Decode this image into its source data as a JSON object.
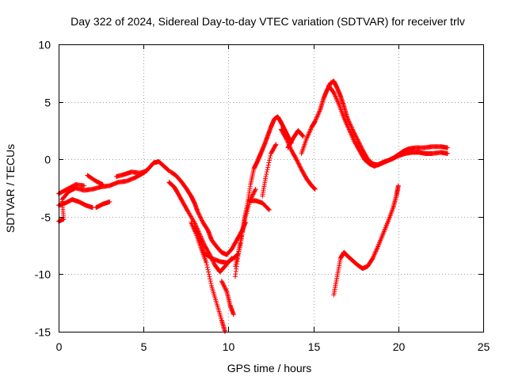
{
  "chart_data": {
    "type": "scatter",
    "title": "Day 322 of 2024, Sidereal Day-to-day VTEC variation (SDTVAR) for receiver trlv",
    "xlabel": "GPS time / hours",
    "ylabel": "SDTVAR / TECUs",
    "xlim": [
      0,
      25
    ],
    "ylim": [
      -15,
      10
    ],
    "xticks": [
      0,
      5,
      10,
      15,
      20,
      25
    ],
    "yticks": [
      -15,
      -10,
      -5,
      0,
      5,
      10
    ],
    "xtick_labels": [
      "0",
      "5",
      "10",
      "15",
      "20",
      "25"
    ],
    "ytick_labels": [
      "-15",
      "-10",
      "-5",
      "0",
      "5",
      "10"
    ],
    "grid": true,
    "marker": "+",
    "series": [
      {
        "name": "trlv",
        "color": "#ff0000",
        "segments": [
          [
            [
              0,
              -5.4
            ],
            [
              0.3,
              -5.2
            ],
            [
              0.2,
              -3.5
            ],
            [
              0.6,
              -2.8
            ],
            [
              1,
              -2.5
            ],
            [
              1.5,
              -2.7
            ],
            [
              2,
              -2.6
            ],
            [
              2.5,
              -2.4
            ],
            [
              3,
              -2.3
            ],
            [
              3.5,
              -2.0
            ],
            [
              4,
              -1.9
            ],
            [
              4.5,
              -1.6
            ],
            [
              5,
              -1.2
            ],
            [
              5.3,
              -0.8
            ],
            [
              5.6,
              -0.3
            ],
            [
              5.9,
              -0.2
            ],
            [
              6.2,
              -0.6
            ],
            [
              6.5,
              -1.0
            ]
          ],
          [
            [
              0,
              -4.0
            ],
            [
              0.4,
              -3.8
            ],
            [
              0.8,
              -3.5
            ],
            [
              1.2,
              -3.7
            ],
            [
              1.6,
              -4.0
            ],
            [
              2,
              -4.2
            ]
          ],
          [
            [
              0,
              -3.0
            ],
            [
              0.5,
              -2.6
            ],
            [
              1,
              -2.2
            ],
            [
              1.5,
              -2.3
            ]
          ],
          [
            [
              1.7,
              -1.4
            ],
            [
              2.2,
              -1.9
            ],
            [
              2.6,
              -2.2
            ]
          ],
          [
            [
              2.2,
              -4.2
            ],
            [
              2.6,
              -3.9
            ],
            [
              3.0,
              -3.7
            ]
          ],
          [
            [
              3.4,
              -1.5
            ],
            [
              3.9,
              -1.3
            ],
            [
              4.3,
              -1.1
            ],
            [
              4.8,
              -1.2
            ],
            [
              5.2,
              -1.0
            ]
          ],
          [
            [
              6.6,
              -1.1
            ],
            [
              6.9,
              -1.4
            ],
            [
              7.2,
              -1.9
            ],
            [
              7.5,
              -2.5
            ],
            [
              7.8,
              -3.2
            ],
            [
              8.0,
              -3.8
            ],
            [
              8.2,
              -4.6
            ],
            [
              8.5,
              -5.5
            ],
            [
              8.8,
              -6.2
            ],
            [
              9.0,
              -7.0
            ],
            [
              9.3,
              -7.6
            ],
            [
              9.6,
              -8.1
            ],
            [
              9.9,
              -8.3
            ],
            [
              10.2,
              -7.8
            ],
            [
              10.5,
              -7.0
            ],
            [
              10.8,
              -6.2
            ],
            [
              11.0,
              -5.5
            ]
          ],
          [
            [
              6.5,
              -2.0
            ],
            [
              6.8,
              -2.4
            ],
            [
              7.0,
              -2.9
            ],
            [
              7.3,
              -3.7
            ],
            [
              7.6,
              -4.5
            ],
            [
              8.0,
              -5.5
            ],
            [
              8.3,
              -6.5
            ],
            [
              8.6,
              -7.5
            ],
            [
              8.9,
              -8.3
            ],
            [
              9.2,
              -9.2
            ],
            [
              9.5,
              -9.8
            ],
            [
              9.8,
              -9.3
            ],
            [
              10.2,
              -8.6
            ]
          ],
          [
            [
              7.8,
              -5.5
            ],
            [
              8.1,
              -6.5
            ],
            [
              8.4,
              -7.8
            ],
            [
              8.7,
              -9.0
            ],
            [
              9.0,
              -11.0
            ],
            [
              9.3,
              -12.5
            ],
            [
              9.6,
              -14.0
            ],
            [
              9.8,
              -15.0
            ]
          ],
          [
            [
              8.0,
              -6.0
            ],
            [
              8.3,
              -6.8
            ],
            [
              8.6,
              -8.2
            ],
            [
              9.0,
              -8.6
            ],
            [
              9.5,
              -8.9
            ],
            [
              9.9,
              -9.0
            ],
            [
              10.3,
              -8.6
            ],
            [
              10.6,
              -8.2
            ]
          ],
          [
            [
              9.6,
              -10.6
            ],
            [
              9.9,
              -11.5
            ],
            [
              10.1,
              -12.7
            ],
            [
              10.3,
              -13.5
            ]
          ],
          [
            [
              10.4,
              -9.3
            ],
            [
              10.7,
              -7.5
            ],
            [
              10.9,
              -5.5
            ],
            [
              11.1,
              -4.0
            ],
            [
              11.3,
              -2.2
            ],
            [
              11.5,
              -0.8
            ],
            [
              11.7,
              -0.2
            ],
            [
              11.9,
              0.5
            ],
            [
              12.1,
              1.2
            ],
            [
              12.3,
              2.0
            ],
            [
              12.5,
              2.8
            ],
            [
              12.7,
              3.5
            ],
            [
              12.9,
              3.7
            ],
            [
              13.1,
              3.2
            ],
            [
              13.3,
              2.6
            ],
            [
              13.5,
              2.0
            ],
            [
              13.7,
              1.4
            ]
          ],
          [
            [
              10.4,
              -10.2
            ],
            [
              10.6,
              -8.0
            ],
            [
              10.8,
              -6.5
            ],
            [
              11.0,
              -5.0
            ],
            [
              11.3,
              -3.5
            ],
            [
              11.6,
              -2.6
            ]
          ],
          [
            [
              11.2,
              -3.6
            ],
            [
              11.6,
              -3.6
            ],
            [
              12.0,
              -3.8
            ],
            [
              12.4,
              -4.4
            ]
          ],
          [
            [
              12.0,
              -3.2
            ],
            [
              12.2,
              -1.5
            ],
            [
              12.5,
              0.5
            ],
            [
              12.8,
              1.3
            ]
          ],
          [
            [
              13.1,
              2.6
            ],
            [
              13.4,
              1.8
            ],
            [
              13.7,
              0.8
            ],
            [
              14.0,
              0.0
            ],
            [
              14.3,
              -0.9
            ],
            [
              14.6,
              -1.7
            ],
            [
              14.9,
              -2.3
            ],
            [
              15.1,
              -2.6
            ]
          ],
          [
            [
              13.5,
              1.0
            ],
            [
              13.8,
              1.8
            ],
            [
              14.1,
              2.5
            ],
            [
              14.4,
              2.0
            ]
          ],
          [
            [
              14.3,
              0.5
            ],
            [
              14.6,
              1.8
            ],
            [
              14.9,
              2.8
            ],
            [
              15.1,
              3.3
            ],
            [
              15.4,
              4.3
            ],
            [
              15.6,
              5.3
            ],
            [
              15.8,
              6.0
            ],
            [
              16.0,
              6.6
            ],
            [
              16.2,
              6.8
            ],
            [
              16.4,
              6.2
            ],
            [
              16.6,
              5.5
            ],
            [
              16.8,
              4.6
            ],
            [
              17.0,
              3.6
            ],
            [
              17.3,
              2.6
            ],
            [
              17.6,
              1.7
            ],
            [
              17.9,
              0.8
            ],
            [
              18.2,
              0.0
            ],
            [
              18.5,
              -0.4
            ],
            [
              18.8,
              -0.5
            ],
            [
              19.1,
              -0.3
            ],
            [
              19.4,
              -0.1
            ],
            [
              19.7,
              0.1
            ],
            [
              20.0,
              0.4
            ],
            [
              20.3,
              0.7
            ],
            [
              20.6,
              0.9
            ],
            [
              21.0,
              1.0
            ],
            [
              21.5,
              1.0
            ],
            [
              22.0,
              1.1
            ],
            [
              22.5,
              1.1
            ],
            [
              22.9,
              1.0
            ]
          ],
          [
            [
              15.9,
              6.4
            ],
            [
              16.2,
              5.8
            ],
            [
              16.5,
              4.8
            ],
            [
              16.8,
              3.6
            ],
            [
              17.1,
              2.6
            ],
            [
              17.4,
              1.6
            ],
            [
              17.7,
              0.8
            ],
            [
              18.0,
              0.0
            ],
            [
              18.3,
              -0.4
            ],
            [
              18.6,
              -0.6
            ],
            [
              18.9,
              -0.4
            ],
            [
              19.2,
              -0.2
            ],
            [
              19.6,
              0.0
            ],
            [
              20.0,
              0.3
            ],
            [
              20.4,
              0.5
            ],
            [
              20.8,
              0.6
            ],
            [
              21.2,
              0.6
            ],
            [
              21.6,
              0.5
            ],
            [
              22.0,
              0.5
            ],
            [
              22.5,
              0.6
            ],
            [
              22.9,
              0.5
            ]
          ],
          [
            [
              16.2,
              -11.8
            ],
            [
              16.4,
              -10.2
            ],
            [
              16.6,
              -8.6
            ],
            [
              16.8,
              -8.1
            ],
            [
              17.0,
              -8.4
            ],
            [
              17.3,
              -8.8
            ],
            [
              17.6,
              -9.2
            ],
            [
              17.9,
              -9.5
            ],
            [
              18.2,
              -9.3
            ],
            [
              18.5,
              -8.6
            ],
            [
              18.8,
              -7.6
            ],
            [
              19.1,
              -6.5
            ],
            [
              19.4,
              -5.4
            ],
            [
              19.7,
              -4.2
            ],
            [
              19.9,
              -3.1
            ],
            [
              20.0,
              -2.3
            ]
          ]
        ]
      }
    ]
  }
}
